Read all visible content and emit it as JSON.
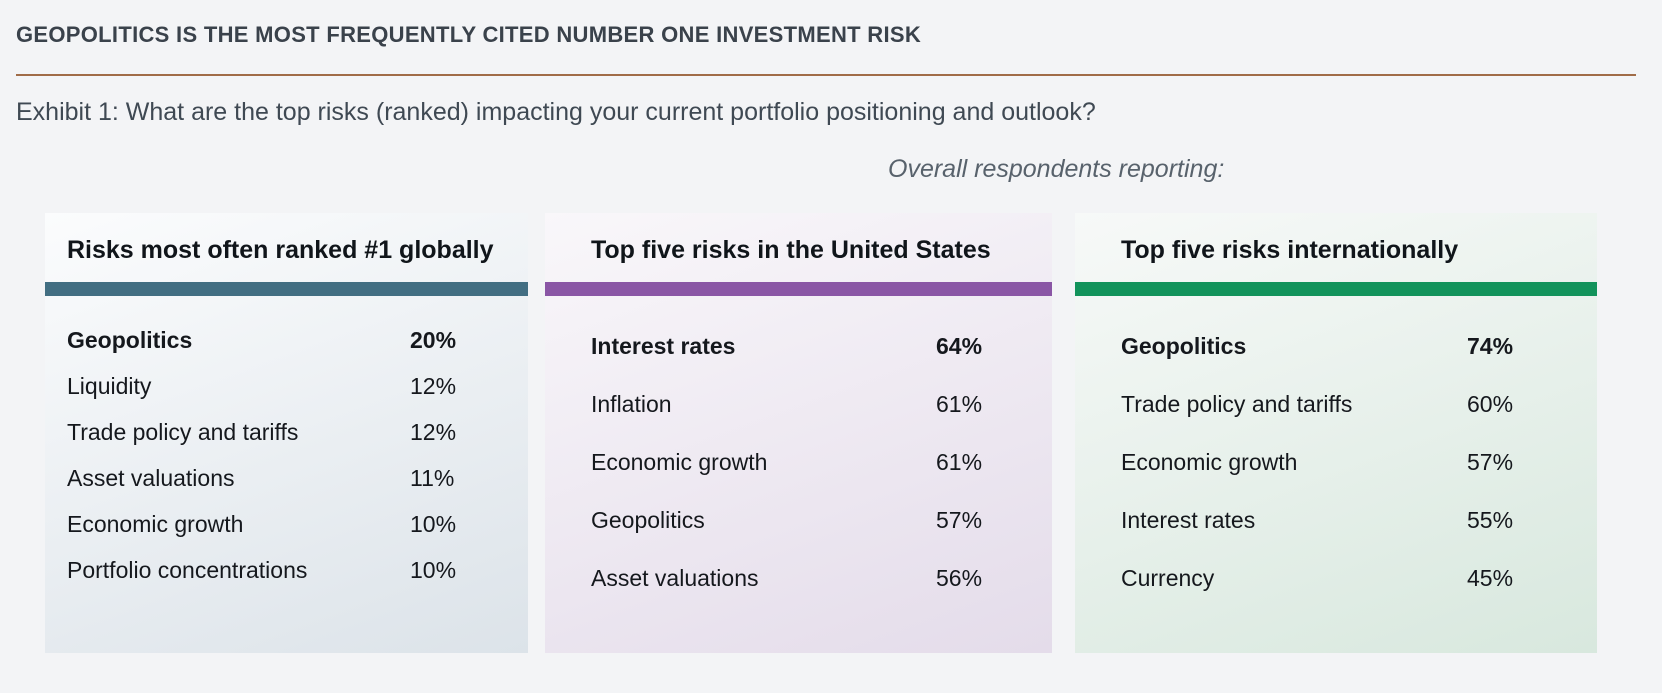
{
  "header": {
    "title": "GEOPOLITICS IS THE MOST FREQUENTLY CITED NUMBER ONE INVESTMENT RISK",
    "exhibit": "Exhibit 1: What are the top risks (ranked) impacting your current portfolio positioning and outlook?",
    "note": "Overall respondents reporting:"
  },
  "colors": {
    "rule": "#a06c48",
    "global_accent": "#426e82",
    "us_accent": "#8a56a5",
    "international_accent": "#12935b"
  },
  "panels": [
    {
      "title": "Risks most often ranked #1 globally",
      "accent_color": "#426e82",
      "rows": [
        {
          "label": "Geopolitics",
          "value": "20%"
        },
        {
          "label": "Liquidity",
          "value": "12%"
        },
        {
          "label": "Trade policy and tariffs",
          "value": "12%"
        },
        {
          "label": "Asset valuations",
          "value": "11%"
        },
        {
          "label": "Economic growth",
          "value": "10%"
        },
        {
          "label": "Portfolio concentrations",
          "value": "10%"
        }
      ]
    },
    {
      "title": "Top five risks in the United States",
      "accent_color": "#8a56a5",
      "rows": [
        {
          "label": "Interest rates",
          "value": "64%"
        },
        {
          "label": "Inflation",
          "value": "61%"
        },
        {
          "label": "Economic growth",
          "value": "61%"
        },
        {
          "label": "Geopolitics",
          "value": "57%"
        },
        {
          "label": "Asset valuations",
          "value": "56%"
        }
      ]
    },
    {
      "title": "Top five risks internationally",
      "accent_color": "#12935b",
      "rows": [
        {
          "label": "Geopolitics",
          "value": "74%"
        },
        {
          "label": "Trade policy and tariffs",
          "value": "60%"
        },
        {
          "label": "Economic growth",
          "value": "57%"
        },
        {
          "label": "Interest rates",
          "value": "55%"
        },
        {
          "label": "Currency",
          "value": "45%"
        }
      ]
    }
  ],
  "chart_data": [
    {
      "type": "table",
      "title": "Risks most often ranked #1 globally",
      "categories": [
        "Geopolitics",
        "Liquidity",
        "Trade policy and tariffs",
        "Asset valuations",
        "Economic growth",
        "Portfolio concentrations"
      ],
      "values": [
        20,
        12,
        12,
        11,
        10,
        10
      ],
      "value_unit": "percent",
      "accent_color": "#426e82"
    },
    {
      "type": "table",
      "title": "Top five risks in the United States",
      "categories": [
        "Interest rates",
        "Inflation",
        "Economic growth",
        "Geopolitics",
        "Asset valuations"
      ],
      "values": [
        64,
        61,
        61,
        57,
        56
      ],
      "value_unit": "percent",
      "accent_color": "#8a56a5"
    },
    {
      "type": "table",
      "title": "Top five risks internationally",
      "categories": [
        "Geopolitics",
        "Trade policy and tariffs",
        "Economic growth",
        "Interest rates",
        "Currency"
      ],
      "values": [
        74,
        60,
        57,
        55,
        45
      ],
      "value_unit": "percent",
      "accent_color": "#12935b"
    }
  ]
}
